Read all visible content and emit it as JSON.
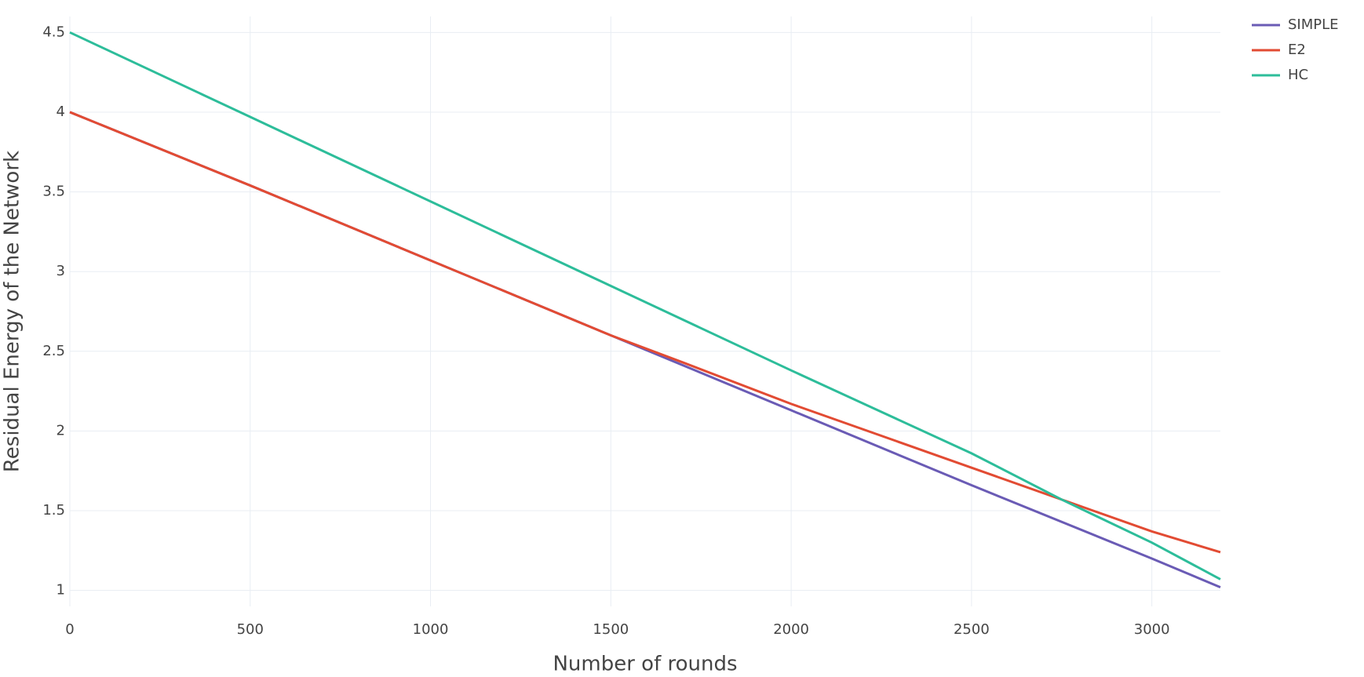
{
  "chart_data": {
    "type": "line",
    "x_label": "Number of rounds",
    "y_label": "Residual Energy of the Network",
    "xlim": [
      0,
      3190
    ],
    "xticks": [
      0,
      500,
      1000,
      1500,
      2000,
      2500,
      3000
    ],
    "ylim": [
      0.9,
      4.6
    ],
    "yticks": [
      1,
      1.5,
      2,
      2.5,
      3,
      3.5,
      4,
      4.5
    ],
    "grid": true,
    "legend": "top-right",
    "series": [
      {
        "name": "SIMPLE",
        "color": "#6a5bb5",
        "x": [
          0,
          500,
          1000,
          1500,
          2000,
          2500,
          3000,
          3190
        ],
        "values": [
          4.0,
          3.54,
          3.07,
          2.6,
          2.13,
          1.66,
          1.2,
          1.02
        ]
      },
      {
        "name": "E2",
        "color": "#e24b33",
        "x": [
          0,
          500,
          1000,
          1500,
          1700,
          2000,
          2500,
          3000,
          3190
        ],
        "values": [
          4.0,
          3.54,
          3.07,
          2.6,
          2.43,
          2.17,
          1.77,
          1.37,
          1.24
        ]
      },
      {
        "name": "HC",
        "color": "#2dbd9a",
        "x": [
          0,
          500,
          1000,
          1500,
          2000,
          2500,
          2750,
          3000,
          3190
        ],
        "values": [
          4.5,
          3.97,
          3.44,
          2.91,
          2.38,
          1.86,
          1.57,
          1.3,
          1.07
        ]
      }
    ]
  }
}
